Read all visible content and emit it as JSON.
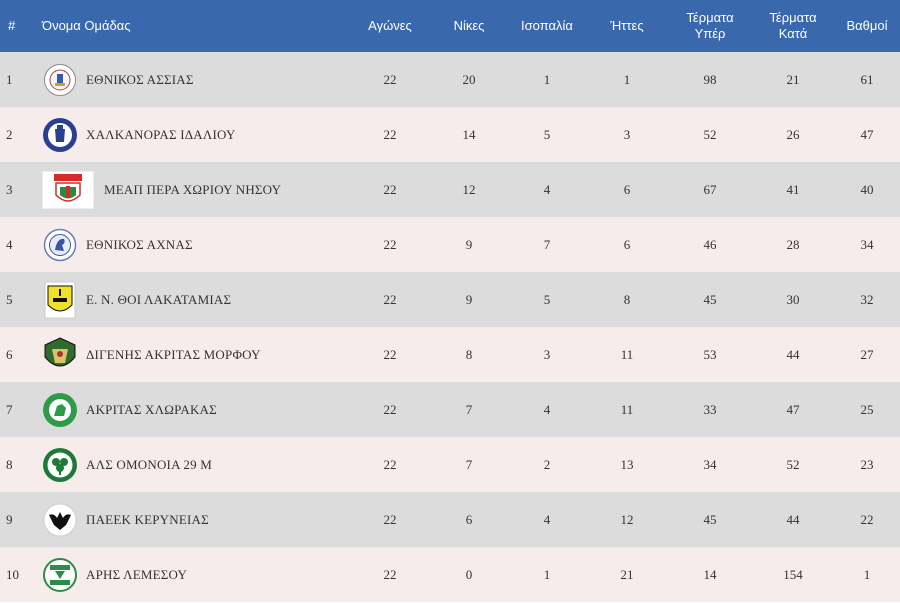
{
  "headers": {
    "pos": "#",
    "team": "Όνομα Ομάδας",
    "played": "Αγώνες",
    "wins": "Νίκες",
    "draws": "Ισοπαλία",
    "losses": "Ήττες",
    "goals_for_1": "Τέρματα",
    "goals_for_2": "Υπέρ",
    "goals_against_1": "Τέρματα",
    "goals_against_2": "Κατά",
    "points": "Βαθμοί"
  },
  "rows": [
    {
      "pos": "1",
      "team": "ΕΘΝΙΚΟΣ ΑΣΣΙΑΣ",
      "played": "22",
      "wins": "20",
      "draws": "1",
      "losses": "1",
      "gf": "98",
      "ga": "21",
      "pts": "61",
      "logo_text": "ΕΘΝΙΚΟΣ ΑΣΣΙΑΣ"
    },
    {
      "pos": "2",
      "team": "ΧΑΛΚΑΝΟΡΑΣ ΙΔΑΛΙΟΥ",
      "played": "22",
      "wins": "14",
      "draws": "5",
      "losses": "3",
      "gf": "52",
      "ga": "26",
      "pts": "47",
      "logo_text": "ΧΑΛΚΑΝΩΡ ΙΔΑΛΙΟΥ"
    },
    {
      "pos": "3",
      "team": "ΜΕΑΠ ΠΕΡΑ ΧΩΡΙΟΥ ΝΗΣΟΥ",
      "played": "22",
      "wins": "12",
      "draws": "4",
      "losses": "6",
      "gf": "67",
      "ga": "41",
      "pts": "40",
      "logo_text": "ΜΕΑΠ"
    },
    {
      "pos": "4",
      "team": "ΕΘΝΙΚΟΣ ΑΧΝΑΣ",
      "played": "22",
      "wins": "9",
      "draws": "7",
      "losses": "6",
      "gf": "46",
      "ga": "28",
      "pts": "34",
      "logo_text": ""
    },
    {
      "pos": "5",
      "team": "Ε. Ν. ΘΟΙ ΛΑΚΑΤΑΜΙΑΣ",
      "played": "22",
      "wins": "9",
      "draws": "5",
      "losses": "8",
      "gf": "45",
      "ga": "30",
      "pts": "32",
      "logo_text": "ΘΟΙ"
    },
    {
      "pos": "6",
      "team": "ΔΙΓΕΝΗΣ ΑΚΡΙΤΑΣ ΜΟΡΦΟΥ",
      "played": "22",
      "wins": "8",
      "draws": "3",
      "losses": "11",
      "gf": "53",
      "ga": "44",
      "pts": "27",
      "logo_text": ""
    },
    {
      "pos": "7",
      "team": "ΑΚΡΙΤΑΣ ΧΛΩΡΑΚΑΣ",
      "played": "22",
      "wins": "7",
      "draws": "4",
      "losses": "11",
      "gf": "33",
      "ga": "47",
      "pts": "25",
      "logo_text": "ΑΚΡΙΤΑΣ ΧΛΩΡΑΚΑΣ"
    },
    {
      "pos": "8",
      "team": "ΑΛΣ ΟΜΟΝΟΙΑ 29 Μ",
      "played": "22",
      "wins": "7",
      "draws": "2",
      "losses": "13",
      "gf": "34",
      "ga": "52",
      "pts": "23",
      "logo_text": ""
    },
    {
      "pos": "9",
      "team": "ΠΑΕΕΚ ΚΕΡΥΝΕΙΑΣ",
      "played": "22",
      "wins": "6",
      "draws": "4",
      "losses": "12",
      "gf": "45",
      "ga": "44",
      "pts": "22",
      "logo_text": "ΠΑΕΕΚ"
    },
    {
      "pos": "10",
      "team": "ΑΡΗΣ ΛΕΜΕΣΟΥ",
      "played": "22",
      "wins": "0",
      "draws": "1",
      "losses": "21",
      "gf": "14",
      "ga": "154",
      "pts": "1",
      "logo_text": "ΑΡΗΣ ΛΕΜΕΣΟΥ"
    }
  ],
  "colors": {
    "header_bg": "#3a68ad",
    "row_odd": "#dcdcdc",
    "row_even": "#f7ecec"
  }
}
